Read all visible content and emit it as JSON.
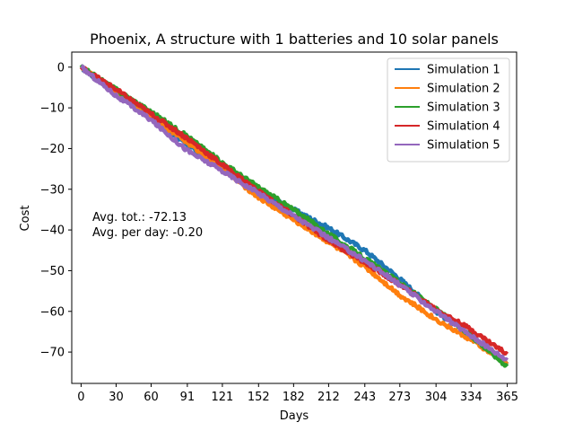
{
  "chart_data": {
    "type": "line",
    "title": "Phoenix, A structure with 1 batteries and 10 solar panels",
    "xlabel": "Days",
    "ylabel": "Cost",
    "xlim": [
      -8,
      373
    ],
    "ylim": [
      -77.7,
      3.7
    ],
    "x_ticks": [
      0,
      30,
      60,
      91,
      121,
      152,
      182,
      212,
      243,
      273,
      304,
      334,
      365
    ],
    "y_ticks": [
      0,
      -10,
      -20,
      -30,
      -40,
      -50,
      -60,
      -70
    ],
    "grid": false,
    "legend_position": "top-right",
    "annotations": [
      "Avg. tot.: -72.13",
      "Avg. per day: -0.20"
    ],
    "series": [
      {
        "name": "Simulation 1",
        "color": "#1f77b4",
        "x": [
          0,
          30,
          60,
          91,
          121,
          152,
          182,
          212,
          243,
          273,
          304,
          334,
          365
        ],
        "y": [
          0,
          -6.5,
          -12.5,
          -19,
          -24.5,
          -30.5,
          -35,
          -39.5,
          -45,
          -52,
          -60,
          -66,
          -73
        ]
      },
      {
        "name": "Simulation 2",
        "color": "#ff7f0e",
        "x": [
          0,
          30,
          60,
          91,
          121,
          152,
          182,
          212,
          243,
          273,
          304,
          334,
          365
        ],
        "y": [
          0,
          -6,
          -12,
          -18.5,
          -25,
          -32,
          -37.5,
          -43,
          -49,
          -56,
          -62,
          -67,
          -73
        ]
      },
      {
        "name": "Simulation 3",
        "color": "#2ca02c",
        "x": [
          0,
          30,
          60,
          91,
          121,
          152,
          182,
          212,
          243,
          273,
          304,
          334,
          365
        ],
        "y": [
          0,
          -5.5,
          -11,
          -17,
          -23.5,
          -29.5,
          -35,
          -41,
          -47,
          -53,
          -59.5,
          -66,
          -73.5
        ]
      },
      {
        "name": "Simulation 4",
        "color": "#d62728",
        "x": [
          0,
          30,
          60,
          91,
          121,
          152,
          182,
          212,
          243,
          273,
          304,
          334,
          365
        ],
        "y": [
          0,
          -5.5,
          -11.5,
          -17.5,
          -24,
          -30.5,
          -36.5,
          -42.5,
          -48,
          -53.5,
          -59.5,
          -64.5,
          -70.5
        ]
      },
      {
        "name": "Simulation 5",
        "color": "#9467bd",
        "x": [
          0,
          30,
          60,
          91,
          121,
          152,
          182,
          212,
          243,
          273,
          304,
          334,
          365
        ],
        "y": [
          0,
          -7,
          -13,
          -20.5,
          -25.5,
          -31,
          -36.5,
          -42,
          -47.5,
          -53.5,
          -60,
          -66,
          -72
        ]
      }
    ]
  }
}
